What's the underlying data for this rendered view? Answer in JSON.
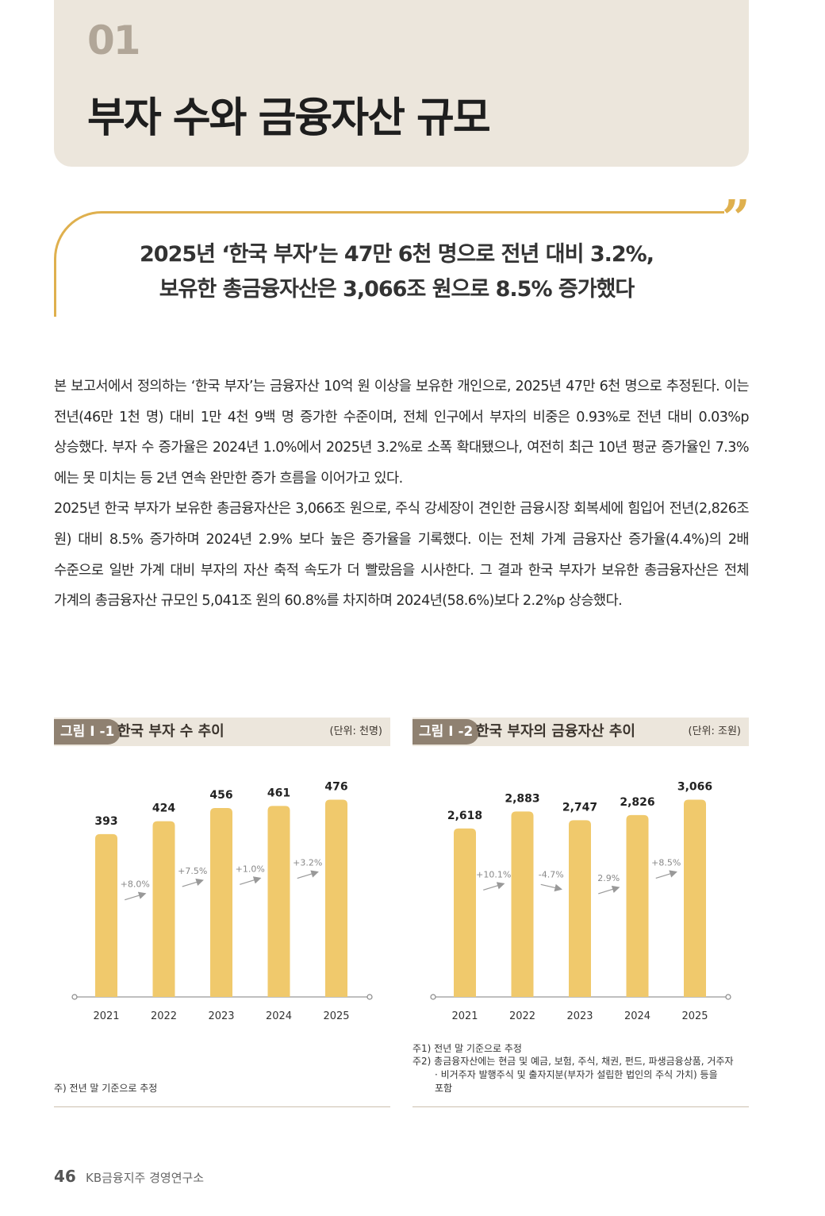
{
  "header": {
    "section_number": "01",
    "section_title": "부자 수와 금융자산 규모"
  },
  "quote": {
    "mark": "”",
    "line1": "2025년 ‘한국 부자’는 47만 6천 명으로 전년 대비 3.2%,",
    "line2": "보유한 총금융자산은 3,066조 원으로 8.5% 증가했다"
  },
  "body": {
    "paragraph1": "본 보고서에서 정의하는 ‘한국 부자’는 금융자산 10억 원 이상을 보유한 개인으로, 2025년 47만 6천 명으로 추정된다. 이는 전년(46만 1천 명) 대비 1만 4천 9백 명 증가한 수준이며, 전체 인구에서 부자의 비중은 0.93%로 전년 대비 0.03%p 상승했다. 부자 수 증가율은 2024년 1.0%에서 2025년 3.2%로 소폭 확대됐으나, 여전히 최근 10년 평균 증가율인 7.3%에는 못 미치는 등 2년 연속 완만한 증가 흐름을 이어가고 있다.",
    "paragraph2": "2025년 한국 부자가 보유한 총금융자산은 3,066조 원으로, 주식 강세장이 견인한 금융시장 회복세에 힘입어 전년(2,826조 원) 대비 8.5% 증가하며 2024년 2.9% 보다 높은 증가율을 기록했다. 이는 전체 가계 금융자산 증가율(4.4%)의 2배 수준으로 일반 가계 대비 부자의 자산 축적 속도가 더 빨랐음을 시사한다. 그 결과 한국 부자가 보유한 총금융자산은 전체 가계의 총금융자산 규모인 5,041조 원의 60.8%를 차지하며 2024년(58.6%)보다 2.2%p 상승했다."
  },
  "figure1": {
    "tag": "그림 I -1",
    "title": "한국 부자 수 추이",
    "unit": "(단위: 천명)",
    "note": "주) 전년 말 기준으로 추정"
  },
  "figure2": {
    "tag": "그림 I -2",
    "title": "한국 부자의 금융자산 추이",
    "unit": "(단위: 조원)",
    "note1": "주1) 전년 말 기준으로 추정",
    "note2a": "주2) 총금융자산에는 현금 및 예금, 보험, 주식, 채권, 펀드, 파생금융상품, 거주자",
    "note2b": "· 비거주자 발행주식 및 출자지분(부자가 설립한 법인의 주식 가치) 등을",
    "note2c": "포함"
  },
  "chart_data": [
    {
      "type": "bar",
      "title": "한국 부자 수 추이",
      "unit": "(단위: 천명)",
      "categories": [
        "2021",
        "2022",
        "2023",
        "2024",
        "2025"
      ],
      "values": [
        393,
        424,
        456,
        461,
        476
      ],
      "value_labels": [
        "393",
        "424",
        "456",
        "461",
        "476"
      ],
      "growth_labels": [
        "+8.0%",
        "+7.5%",
        "+1.0%",
        "+3.2%"
      ],
      "ylim": [
        0,
        500
      ],
      "bar_color": "#f0c96c"
    },
    {
      "type": "bar",
      "title": "한국 부자의 금융자산 추이",
      "unit": "(단위: 조원)",
      "categories": [
        "2021",
        "2022",
        "2023",
        "2024",
        "2025"
      ],
      "values": [
        2618,
        2883,
        2747,
        2826,
        3066
      ],
      "value_labels": [
        "2,618",
        "2,883",
        "2,747",
        "2,826",
        "3,066"
      ],
      "growth_labels": [
        "+10.1%",
        "-4.7%",
        "2.9%",
        "+8.5%"
      ],
      "ylim": [
        0,
        3220
      ],
      "bar_color": "#f0c96c"
    }
  ],
  "footer": {
    "page_number": "46",
    "organization": "KB금융지주 경영연구소"
  }
}
